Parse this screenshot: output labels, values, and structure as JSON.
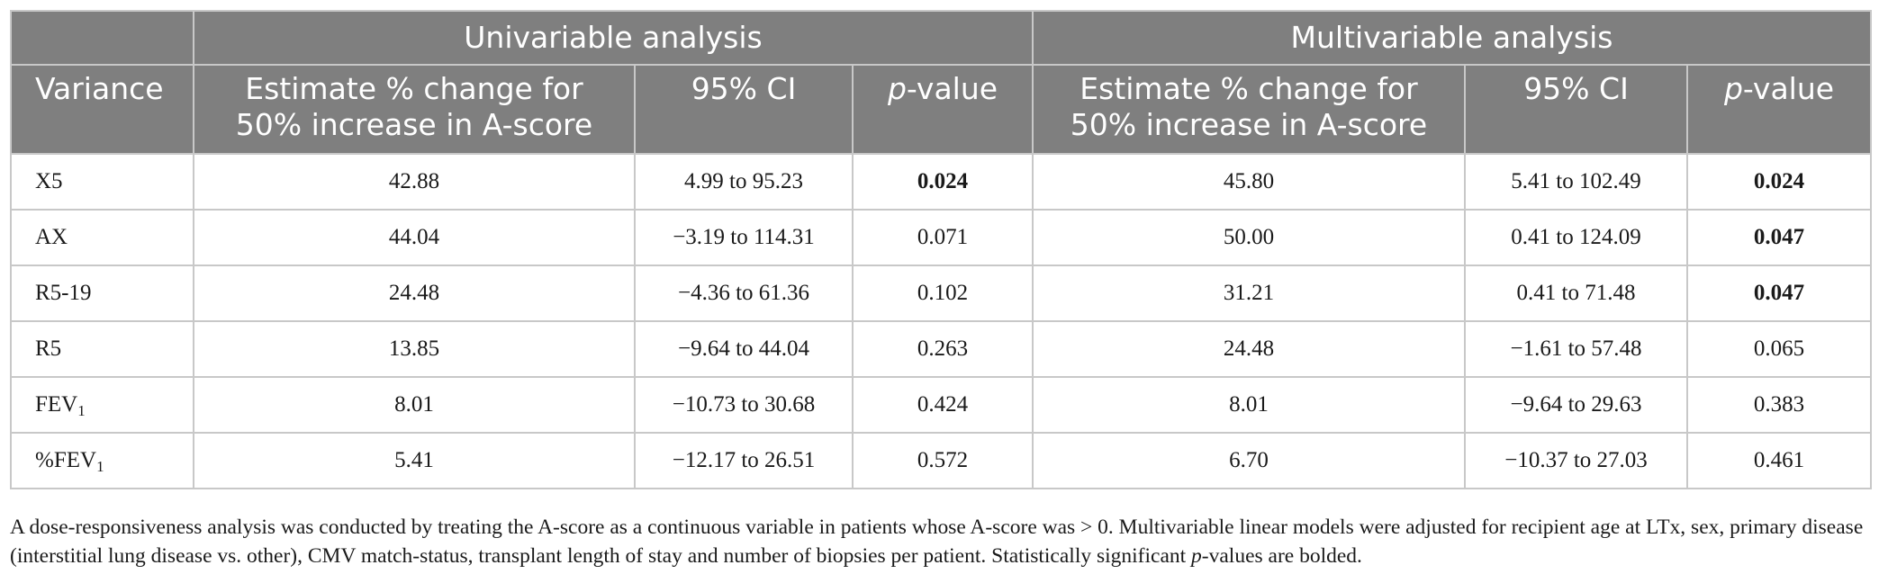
{
  "header": {
    "group_univariable": "Univariable analysis",
    "group_multivariable": "Multivariable analysis",
    "col_variance": "Variance",
    "col_estimate_line1": "Estimate % change for",
    "col_estimate_line2": "50% increase in A-score",
    "col_ci": "95% CI",
    "col_p_italic": "p",
    "col_p_rest": "-value"
  },
  "rows": [
    {
      "var": "X5",
      "var_sub": "",
      "u_est": "42.88",
      "u_ci": "4.99 to 95.23",
      "u_p": "0.024",
      "u_sig": true,
      "m_est": "45.80",
      "m_ci": "5.41 to 102.49",
      "m_p": "0.024",
      "m_sig": true
    },
    {
      "var": "AX",
      "var_sub": "",
      "u_est": "44.04",
      "u_ci": "−3.19 to 114.31",
      "u_p": "0.071",
      "u_sig": false,
      "m_est": "50.00",
      "m_ci": "0.41 to 124.09",
      "m_p": "0.047",
      "m_sig": true
    },
    {
      "var": "R5-19",
      "var_sub": "",
      "u_est": "24.48",
      "u_ci": "−4.36 to 61.36",
      "u_p": "0.102",
      "u_sig": false,
      "m_est": "31.21",
      "m_ci": "0.41 to 71.48",
      "m_p": "0.047",
      "m_sig": true
    },
    {
      "var": "R5",
      "var_sub": "",
      "u_est": "13.85",
      "u_ci": "−9.64 to 44.04",
      "u_p": "0.263",
      "u_sig": false,
      "m_est": "24.48",
      "m_ci": "−1.61 to 57.48",
      "m_p": "0.065",
      "m_sig": false
    },
    {
      "var": "FEV",
      "var_sub": "1",
      "u_est": "8.01",
      "u_ci": "−10.73 to 30.68",
      "u_p": "0.424",
      "u_sig": false,
      "m_est": "8.01",
      "m_ci": "−9.64 to 29.63",
      "m_p": "0.383",
      "m_sig": false
    },
    {
      "var": "%FEV",
      "var_sub": "1",
      "u_est": "5.41",
      "u_ci": "−12.17 to 26.51",
      "u_p": "0.572",
      "u_sig": false,
      "m_est": "6.70",
      "m_ci": "−10.37 to 27.03",
      "m_p": "0.461",
      "m_sig": false
    }
  ],
  "footnote": {
    "part1": "A dose-responsiveness analysis was conducted by treating the A-score as a continuous variable in patients whose A-score was > 0. Multivariable linear models were adjusted for recipient age at LTx, sex, primary disease (interstitial lung disease vs. other), CMV match-status, transplant length of stay and number of biopsies per patient. Statistically significant ",
    "p_italic": "p",
    "part2": "-values are bolded."
  }
}
